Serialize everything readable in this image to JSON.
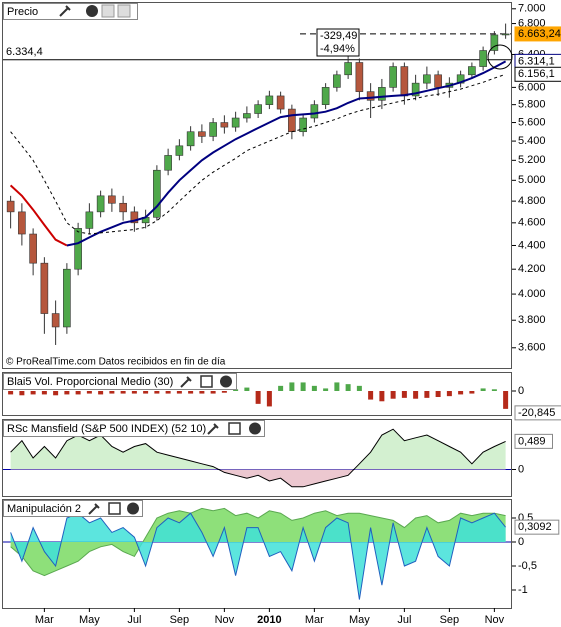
{
  "chart_data": [
    {
      "type": "candlestick",
      "title": "Precio",
      "open": [
        4800,
        4700,
        4500,
        4250,
        3850,
        3750,
        4200,
        4550,
        4700,
        4850,
        4780,
        4700,
        4600,
        4650,
        5100,
        5250,
        5350,
        5500,
        5450,
        5600,
        5550,
        5650,
        5700,
        5800,
        5900,
        5750,
        5500,
        5650,
        5800,
        6000,
        6150,
        6300,
        5950,
        5850,
        6000,
        6250,
        5900,
        6050,
        6150,
        6000,
        6050,
        6150,
        6250,
        6450,
        6650
      ],
      "high": [
        4850,
        4780,
        4550,
        4300,
        3950,
        4250,
        4600,
        4780,
        4900,
        4920,
        4850,
        4750,
        4720,
        5150,
        5320,
        5420,
        5560,
        5580,
        5650,
        5680,
        5720,
        5780,
        5850,
        5960,
        5950,
        5800,
        5700,
        5850,
        6050,
        6200,
        6380,
        6350,
        6050,
        6100,
        6300,
        6300,
        6150,
        6250,
        6200,
        6120,
        6200,
        6300,
        6500,
        6700,
        6800
      ],
      "low": [
        4550,
        4400,
        4150,
        3700,
        3620,
        3700,
        4150,
        4500,
        4650,
        4700,
        4620,
        4520,
        4550,
        4620,
        5050,
        5200,
        5300,
        5380,
        5400,
        5480,
        5500,
        5600,
        5650,
        5750,
        5700,
        5420,
        5450,
        5600,
        5750,
        5950,
        6100,
        5850,
        5650,
        5750,
        5950,
        5800,
        5850,
        5980,
        5900,
        5880,
        6000,
        6100,
        6200,
        6400,
        6600
      ],
      "close": [
        4700,
        4500,
        4250,
        3850,
        3750,
        4200,
        4550,
        4700,
        4850,
        4780,
        4700,
        4600,
        4650,
        5100,
        5250,
        5350,
        5500,
        5450,
        5600,
        5550,
        5650,
        5700,
        5800,
        5900,
        5750,
        5500,
        5650,
        5800,
        6000,
        6150,
        6300,
        5950,
        5850,
        6000,
        6250,
        5900,
        6050,
        6150,
        6000,
        6050,
        6150,
        6250,
        6450,
        6650,
        6663.24
      ],
      "close_label": "6.663,24",
      "up_color": "#4fa84a",
      "down_color": "#b5573d",
      "series": [
        {
          "color": "#cc0000",
          "values": [
            4950,
            4850,
            4720,
            4580,
            4450,
            4400,
            null,
            null,
            null,
            null,
            null,
            null,
            null,
            null,
            null,
            null,
            null,
            null,
            null,
            null,
            null,
            null,
            null,
            null,
            null,
            null,
            null,
            null,
            null,
            null,
            null,
            null,
            null,
            null,
            null,
            null,
            null,
            null,
            null,
            null,
            null,
            null,
            null,
            null,
            null
          ]
        },
        {
          "color": "#000080",
          "values": [
            null,
            null,
            null,
            null,
            null,
            4400,
            4420,
            4470,
            4520,
            4560,
            4600,
            4620,
            4650,
            4750,
            4880,
            5000,
            5100,
            5200,
            5280,
            5350,
            5420,
            5480,
            5540,
            5600,
            5660,
            5680,
            5690,
            5700,
            5720,
            5760,
            5820,
            5870,
            5880,
            5890,
            5900,
            5910,
            5930,
            5960,
            5990,
            6020,
            6060,
            6110,
            6170,
            6240,
            6314.1
          ],
          "last_label": "6.314,1"
        },
        {
          "color": "#000000",
          "dashed": true,
          "values": [
            5500,
            5350,
            5200,
            5000,
            4800,
            4600,
            4520,
            4500,
            4510,
            4520,
            4530,
            4540,
            4560,
            4620,
            4700,
            4800,
            4900,
            5000,
            5080,
            5150,
            5220,
            5300,
            5350,
            5400,
            5450,
            5500,
            5530,
            5560,
            5600,
            5640,
            5690,
            5730,
            5760,
            5790,
            5820,
            5850,
            5870,
            5900,
            5920,
            5950,
            5980,
            6020,
            6060,
            6110,
            6156.1
          ],
          "last_label": "6.156,1"
        }
      ],
      "reference": {
        "value": 6334.4,
        "label": "6.334,4"
      },
      "change": {
        "value": -329.49,
        "label": "-329,49"
      },
      "change_pct": {
        "value": -4.94,
        "label": "-4,94%"
      },
      "credit": "© ProRealTime.com Datos recibidos en fin de día",
      "log_scale": true,
      "ylim": [
        3460,
        7080
      ],
      "yticks": [
        {
          "value": 3600,
          "label": "3.600"
        },
        {
          "value": 3800,
          "label": "3.800"
        },
        {
          "value": 4000,
          "label": "4.000"
        },
        {
          "value": 4200,
          "label": "4.200"
        },
        {
          "value": 4400,
          "label": "4.400"
        },
        {
          "value": 4600,
          "label": "4.600"
        },
        {
          "value": 4800,
          "label": "4.800"
        },
        {
          "value": 5000,
          "label": "5.000"
        },
        {
          "value": 5200,
          "label": "5.200"
        },
        {
          "value": 5400,
          "label": "5.400"
        },
        {
          "value": 5600,
          "label": "5.600"
        },
        {
          "value": 5800,
          "label": "5.800"
        },
        {
          "value": 6000,
          "label": "6.000"
        },
        {
          "value": 6400,
          "label": "6.400"
        },
        {
          "value": 6800,
          "label": "6.800"
        },
        {
          "value": 7000,
          "label": "7.000"
        }
      ]
    },
    {
      "type": "bar",
      "title": "Blai5 Vol. Proporcional Medio (30)",
      "values": [
        -4,
        -5,
        -4,
        -4,
        -5,
        -4,
        -4,
        -3,
        -4,
        -3,
        -3,
        -3,
        -3,
        -3,
        -3,
        -3,
        -3,
        -3,
        -3,
        -2,
        2,
        4,
        -15,
        -18,
        6,
        10,
        10,
        6,
        3,
        10,
        8,
        6,
        -10,
        -12,
        -9,
        -8,
        -9,
        -8,
        -7,
        -6,
        -4,
        -3,
        3,
        2,
        -20.845
      ],
      "last_label": "-20,845",
      "up_color": "#4fa84a",
      "down_color": "#b52a1a",
      "ylim": [
        -28,
        21
      ],
      "yticks": [
        0
      ]
    },
    {
      "type": "area",
      "title": "RSc Mansfield (S&P 500 INDEX) (52 10)",
      "series": [
        {
          "color": "#000000",
          "values": [
            0.3,
            0.5,
            0.2,
            0.4,
            0.2,
            0.5,
            0.6,
            0.5,
            0.6,
            0.4,
            0.3,
            0.4,
            0.45,
            0.3,
            0.25,
            0.2,
            0.15,
            0.1,
            0.05,
            -0.05,
            -0.1,
            -0.15,
            -0.1,
            -0.2,
            -0.15,
            -0.3,
            -0.3,
            -0.25,
            -0.2,
            -0.15,
            -0.1,
            0.1,
            0.3,
            0.6,
            0.7,
            0.5,
            0.55,
            0.6,
            0.5,
            0.4,
            0.3,
            0.1,
            0.3,
            0.4,
            0.489
          ],
          "last_label": "0,489"
        }
      ],
      "fill_above": "#d3f0d0",
      "fill_below": "#ecc8d0",
      "ylim": [
        -0.46,
        0.86
      ],
      "yticks": [
        0
      ]
    },
    {
      "type": "area",
      "title": "Manipulación 2",
      "categories": [
        null,
        null,
        null,
        "Mar",
        null,
        null,
        null,
        "May",
        null,
        null,
        null,
        "Jul",
        null,
        null,
        null,
        "Sep",
        null,
        null,
        null,
        "Nov",
        null,
        null,
        null,
        "2010",
        null,
        null,
        null,
        "Mar",
        null,
        null,
        null,
        "May",
        null,
        null,
        null,
        "Jul",
        null,
        null,
        null,
        "Sep",
        null,
        null,
        null,
        "Nov",
        null
      ],
      "series": [
        {
          "color": "#8ee07a",
          "line_color": "#5aa850",
          "values": [
            -0.1,
            -0.3,
            -0.6,
            -0.7,
            -0.6,
            -0.5,
            -0.4,
            -0.2,
            -0.1,
            -0.05,
            -0.2,
            -0.3,
            0.1,
            0.5,
            0.6,
            0.65,
            0.6,
            0.7,
            0.65,
            0.7,
            0.55,
            0.6,
            0.5,
            0.65,
            0.6,
            0.45,
            0.5,
            0.6,
            0.65,
            0.55,
            0.6,
            0.6,
            0.55,
            0.5,
            0.45,
            0.3,
            0.5,
            0.55,
            0.4,
            0.45,
            0.6,
            0.55,
            0.6,
            0.6,
            0.55
          ]
        },
        {
          "color": "#40e0d8",
          "line_color": "#2060c0",
          "values": [
            0.2,
            -0.4,
            0.3,
            -0.2,
            -0.5,
            0.5,
            0.6,
            0.4,
            0.5,
            0.2,
            0.3,
            0.1,
            -0.5,
            0.3,
            0.5,
            0.4,
            0.6,
            0.2,
            -0.3,
            0.3,
            -0.7,
            0.3,
            0.3,
            -0.3,
            -0.2,
            -0.6,
            0.3,
            -0.4,
            0.3,
            0.5,
            0.4,
            -1.2,
            0.3,
            -0.9,
            0.4,
            -0.5,
            -0.4,
            0.3,
            -0.3,
            -0.5,
            0.5,
            0.4,
            0.5,
            0.6,
            0.3092
          ],
          "last_label": "0,3092"
        }
      ],
      "ylim": [
        -1.375,
        0.875
      ],
      "yticks": [
        {
          "value": 0.5,
          "label": "0,5"
        },
        0,
        {
          "value": -0.5,
          "label": "-0,5"
        },
        -1
      ]
    }
  ]
}
